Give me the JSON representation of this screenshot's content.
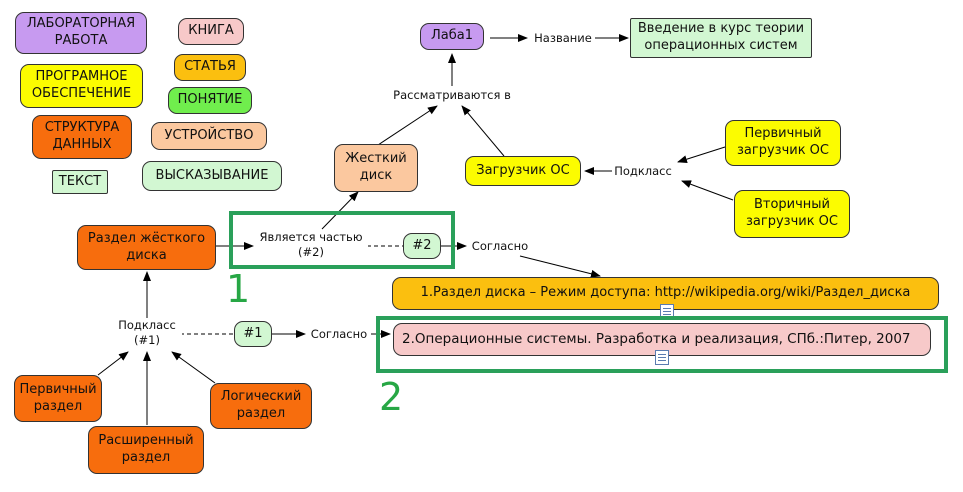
{
  "colors": {
    "lab": "#c79af0",
    "book": "#f7c9c9",
    "program": "#fcfc00",
    "article": "#fbbf0f",
    "concept": "#70ee4d",
    "structure": "#f76d0d",
    "device": "#fbc89f",
    "text": "#d2f7d2",
    "statement": "#d2f7d2",
    "highlight": "#2aa05a",
    "number": "#27a745"
  },
  "legend": {
    "lab": "ЛАБОРАТОРНАЯ\nРАБОТА",
    "book": "КНИГА",
    "program": "ПРОГРАМНОЕ\nОБЕСПЕЧЕНИЕ",
    "article": "СТАТЬЯ",
    "concept": "ПОНЯТИЕ",
    "structure": "СТРУКТУРА\nДАННЫХ",
    "device": "УСТРОЙСТВО",
    "text": "ТЕКСТ",
    "statement": "ВЫСКАЗЫВАНИЕ"
  },
  "nodes": {
    "laba1": "Лаба1",
    "intro": "Введение в курс теории\nоперационных систем",
    "hdd": "Жесткий\nдиск",
    "loader": "Загрузчик ОС",
    "primary_loader": "Первичный\nзагрузчик ОС",
    "secondary_loader": "Вторичный\nзагрузчик ОС",
    "partition": "Раздел жёсткого\nдиска",
    "primary_partition": "Первичный\nраздел",
    "extended_partition": "Расширенный\nраздел",
    "logical_partition": "Логический\nраздел",
    "ref1": "1.Раздел диска – Режим доступа: http://wikipedia.org/wiki/Раздел_диска",
    "ref2": "2.Операционные системы. Разработка и реализация, СПб.:Питер, 2007",
    "badge1": "#1",
    "badge2": "#2"
  },
  "labels": {
    "name": "Название",
    "considered": "Рассматриваются в",
    "subclass_top": "Подкласс",
    "is_part": "Является частью\n(#2)",
    "according2": "Согласно",
    "subclass_left": "Подкласс\n(#1)",
    "according1": "Согласно"
  },
  "annotations": {
    "n1": "1",
    "n2": "2"
  }
}
